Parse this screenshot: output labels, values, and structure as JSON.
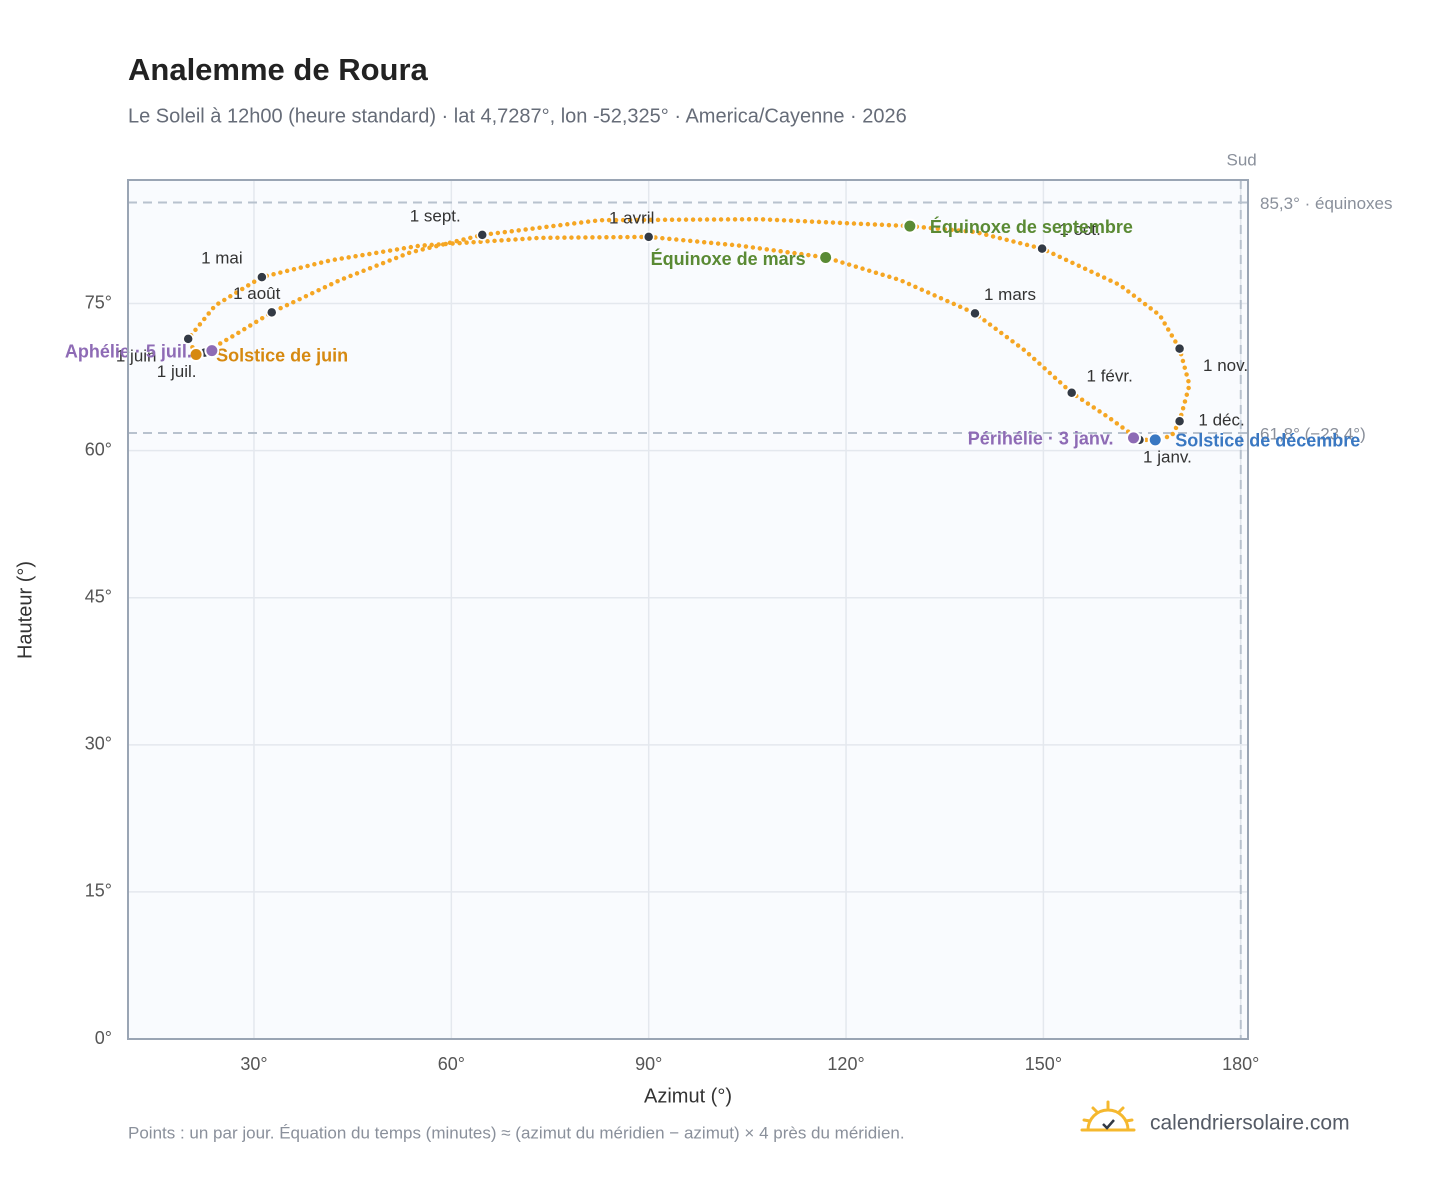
{
  "chart_data": {
    "type": "scatter",
    "title": "Analemme de Roura",
    "subtitle": "Le Soleil à 12h00 (heure standard) · lat 4,7287°, lon -52,325° · America/Cayenne · 2026",
    "x_label": "Azimut (°)",
    "y_label": "Hauteur (°)",
    "xlim": [
      10.85,
      181.1
    ],
    "ylim": [
      0,
      87.6
    ],
    "xticks": [
      {
        "value": 30,
        "label": "30°"
      },
      {
        "value": 60,
        "label": "60°"
      },
      {
        "value": 90,
        "label": "90°"
      },
      {
        "value": 120,
        "label": "120°"
      },
      {
        "value": 150,
        "label": "150°"
      },
      {
        "value": 180,
        "label": "180°"
      }
    ],
    "yticks": [
      {
        "value": 0,
        "label": "0°"
      },
      {
        "value": 15,
        "label": "15°"
      },
      {
        "value": 30,
        "label": "30°"
      },
      {
        "value": 45,
        "label": "45°"
      },
      {
        "value": 60,
        "label": "60°"
      },
      {
        "value": 75,
        "label": "75°"
      }
    ],
    "grid": true,
    "daily": {
      "color": "#f5a623",
      "x": [
        164.6,
        160.1,
        154.3,
        147.2,
        139.6,
        128.2,
        116.9,
        103.9,
        90.0,
        73.5,
        55.2,
        41.6,
        31.2,
        24.1,
        20.0,
        21.2,
        22.5,
        27.1,
        32.7,
        43.1,
        53.7,
        64.7,
        82.6,
        106.9,
        129.7,
        139.6,
        149.8,
        161.6,
        167.7,
        170.7,
        172.2,
        170.7,
        169.5,
        167.0,
        164.6
      ],
      "y": [
        61.1,
        63.3,
        65.9,
        70.2,
        74.0,
        77.4,
        79.7,
        80.9,
        81.8,
        81.7,
        80.9,
        79.4,
        77.7,
        74.8,
        71.4,
        69.8,
        70.0,
        71.8,
        74.1,
        77.4,
        80.2,
        82.0,
        83.5,
        83.6,
        82.9,
        82.3,
        80.6,
        76.9,
        73.8,
        70.4,
        66.7,
        63.0,
        61.5,
        61.1,
        61.1
      ]
    },
    "months": {
      "color": "#333a45",
      "labels": [
        "1 janv.",
        "1 févr.",
        "1 mars",
        "1 avril",
        "1 mai",
        "1 juin",
        "1 juil.",
        "1 août",
        "1 sept.",
        "1 oct.",
        "1 nov.",
        "1 déc."
      ],
      "x": [
        164.6,
        154.3,
        139.6,
        90.0,
        31.2,
        20.0,
        22.5,
        32.7,
        64.7,
        149.8,
        170.7,
        170.7
      ],
      "y": [
        61.1,
        65.9,
        74.0,
        81.8,
        77.7,
        71.4,
        70.0,
        74.1,
        82.0,
        80.6,
        70.4,
        63.0
      ]
    },
    "events": [
      {
        "label": "Équinoxe de mars",
        "x": 116.9,
        "y": 79.7,
        "color": "#5a8a34"
      },
      {
        "label": "Solstice de juin",
        "x": 21.2,
        "y": 69.8,
        "color": "#d68910"
      },
      {
        "label": "Équinoxe de septembre",
        "x": 129.7,
        "y": 82.9,
        "color": "#5a8a34"
      },
      {
        "label": "Solstice de décembre",
        "x": 167.0,
        "y": 61.1,
        "color": "#3a78c2"
      },
      {
        "label": "Aphélie · 5 juil.",
        "x": 23.6,
        "y": 70.2,
        "color": "#8e6bb5"
      },
      {
        "label": "Périhélie · 3 janv.",
        "x": 163.7,
        "y": 61.3,
        "color": "#8e6bb5"
      }
    ],
    "hlines": [
      {
        "value": 85.3,
        "label": "85,3° · équinoxes"
      },
      {
        "value": 61.8,
        "label": "61,8° (−23,4°)"
      }
    ],
    "vline": {
      "value": 180,
      "label": "Sud"
    },
    "footnote": "Points : un par jour. Équation du temps (minutes) ≈ (azimut du méridien − azimut) × 4 près du méridien.",
    "brand": "calendriersolaire.com"
  }
}
